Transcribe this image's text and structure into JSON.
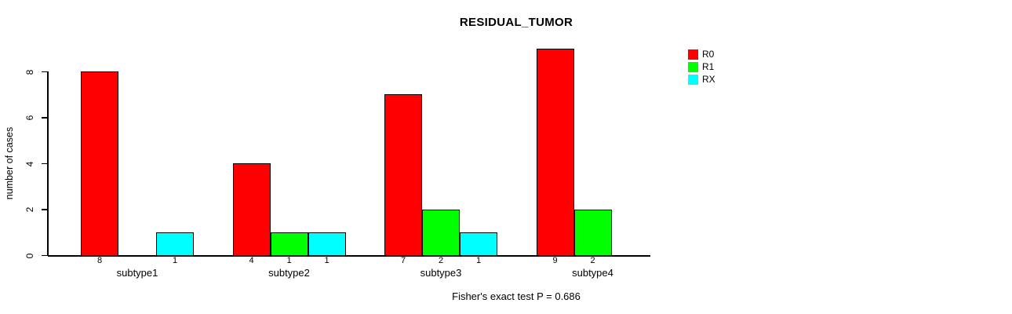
{
  "title": "RESIDUAL_TUMOR",
  "footer": "Fisher's exact test P = 0.686",
  "chart_data": {
    "type": "bar",
    "title": "RESIDUAL_TUMOR",
    "categories": [
      "subtype1",
      "subtype2",
      "subtype3",
      "subtype4"
    ],
    "series": [
      {
        "name": "R0",
        "color": "#ff0000",
        "values": [
          8,
          4,
          7,
          9
        ]
      },
      {
        "name": "R1",
        "color": "#00ff00",
        "values": [
          0,
          1,
          2,
          2
        ]
      },
      {
        "name": "RX",
        "color": "#00ffff",
        "values": [
          1,
          1,
          1,
          0
        ]
      }
    ],
    "xlabel": "",
    "ylabel": "number of cases",
    "yticks": [
      0,
      2,
      4,
      6,
      8
    ],
    "ylim": [
      0,
      9
    ],
    "grid": false,
    "legend_position": "right",
    "legend_entries": [
      "R0",
      "R1",
      "RX"
    ],
    "value_labels_below_axis": true,
    "zero_values_unlabeled": true,
    "annotation": "Fisher's exact test P = 0.686",
    "axis_color": "#000000",
    "background_color": "#ffffff"
  }
}
